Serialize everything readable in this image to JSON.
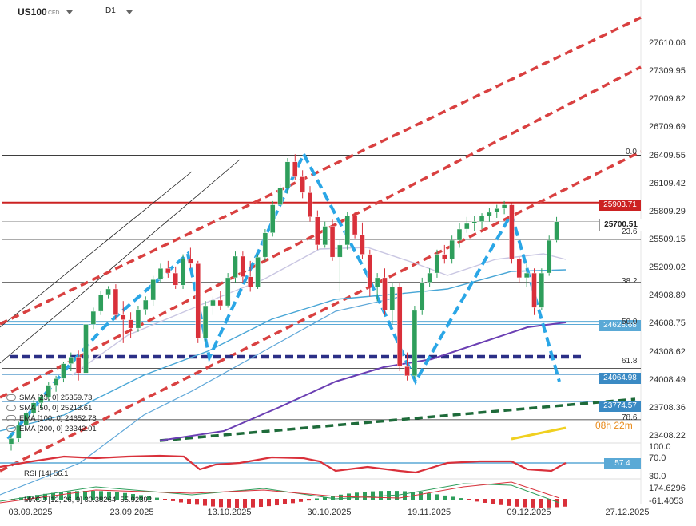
{
  "header": {
    "symbol": "US100",
    "type": "CFD",
    "timeframe": "D1"
  },
  "price_axis": {
    "ticks": [
      "27610.08",
      "27309.95",
      "27009.82",
      "26709.69",
      "26409.55",
      "26109.42",
      "25809.29",
      "25509.15",
      "25209.02",
      "24908.89",
      "24608.75",
      "24308.62",
      "24008.49",
      "23708.36",
      "23408.22"
    ],
    "badges": [
      {
        "label": "25903.71",
        "color": "#cc2222"
      },
      {
        "label": "25700.51",
        "color": "#ffffff",
        "text": "#222",
        "border": "#999"
      },
      {
        "label": "24628.68",
        "color": "#5aa9d6"
      },
      {
        "label": "24064.98",
        "color": "#3a8ac4"
      },
      {
        "label": "23774.57",
        "color": "#3a8ac4"
      }
    ],
    "timer": "08h 22m"
  },
  "fib_labels": [
    "0.0",
    "23.6",
    "38.2",
    "50.0",
    "61.8",
    "78.6"
  ],
  "rsi": {
    "label": "RSI [14]",
    "value": "56.1",
    "ticks": [
      "100.0",
      "70.0",
      "30.0"
    ],
    "badge": "57.4"
  },
  "macd": {
    "label": "MACD [12, 26, 9]",
    "v1": "30.38264",
    "v2": "55.92392",
    "ticks": [
      "174.6296",
      "-61.4053"
    ]
  },
  "legend": [
    {
      "label": "SMA [25, 0]",
      "value": "25359.73"
    },
    {
      "label": "SMA [50, 0]",
      "value": "25213.61"
    },
    {
      "label": "EMA [100, 0]",
      "value": "24652.78"
    },
    {
      "label": "EMA [200, 0]",
      "value": "23342.01"
    }
  ],
  "x_axis": [
    "03.09.2025",
    "23.09.2025",
    "13.10.2025",
    "30.10.2025",
    "19.11.2025",
    "09.12.2025",
    "27.12.2025"
  ],
  "colors": {
    "up": "#2e9e5b",
    "down": "#d9303a",
    "resistance": "#cc2222",
    "channel": "#d94040",
    "pattern": "#2aa6e6"
  },
  "chart_data": {
    "type": "candlestick",
    "candles": [
      [
        23320,
        23420,
        23250,
        23380
      ],
      [
        23380,
        23560,
        23340,
        23520
      ],
      [
        23520,
        23680,
        23480,
        23650
      ],
      [
        23650,
        23790,
        23600,
        23760
      ],
      [
        23760,
        23850,
        23700,
        23820
      ],
      [
        23820,
        23980,
        23780,
        23950
      ],
      [
        23950,
        24050,
        23880,
        24020
      ],
      [
        24020,
        24200,
        23980,
        24180
      ],
      [
        24180,
        24300,
        24100,
        24250
      ],
      [
        24250,
        24320,
        24000,
        24080
      ],
      [
        24080,
        24650,
        24050,
        24600
      ],
      [
        24600,
        24780,
        24550,
        24740
      ],
      [
        24740,
        24960,
        24700,
        24920
      ],
      [
        24920,
        25010,
        24880,
        24980
      ],
      [
        24980,
        25030,
        24650,
        24700
      ],
      [
        24700,
        24850,
        24400,
        24650
      ],
      [
        24650,
        24730,
        24450,
        24560
      ],
      [
        24560,
        24800,
        24520,
        24760
      ],
      [
        24760,
        24900,
        24700,
        24860
      ],
      [
        24860,
        25120,
        24800,
        25080
      ],
      [
        25080,
        25250,
        25040,
        25200
      ],
      [
        25200,
        25280,
        25100,
        25150
      ],
      [
        25150,
        25220,
        24980,
        25020
      ],
      [
        25020,
        25350,
        24980,
        25300
      ],
      [
        25300,
        25420,
        25200,
        25250
      ],
      [
        25250,
        25280,
        24400,
        24450
      ],
      [
        24450,
        24850,
        24420,
        24800
      ],
      [
        24800,
        24900,
        24700,
        24860
      ],
      [
        24860,
        24960,
        24750,
        24800
      ],
      [
        24800,
        25150,
        24780,
        25100
      ],
      [
        25100,
        25380,
        25050,
        25330
      ],
      [
        25330,
        25380,
        25050,
        25110
      ],
      [
        25110,
        25280,
        24950,
        25000
      ],
      [
        25000,
        25350,
        24980,
        25320
      ],
      [
        25320,
        25620,
        25280,
        25580
      ],
      [
        25580,
        25920,
        25540,
        25880
      ],
      [
        25880,
        26100,
        25850,
        26060
      ],
      [
        26060,
        26380,
        26000,
        26340
      ],
      [
        26340,
        26420,
        26150,
        26180
      ],
      [
        26180,
        26250,
        25950,
        26010
      ],
      [
        26010,
        26080,
        25700,
        25750
      ],
      [
        25750,
        25820,
        25400,
        25450
      ],
      [
        25450,
        25700,
        25420,
        25650
      ],
      [
        25650,
        25720,
        25280,
        25320
      ],
      [
        25320,
        25500,
        24950,
        25450
      ],
      [
        25450,
        25800,
        25400,
        25760
      ],
      [
        25760,
        25800,
        25520,
        25560
      ],
      [
        25560,
        25690,
        25300,
        25350
      ],
      [
        25350,
        25400,
        24900,
        25000
      ],
      [
        25000,
        25150,
        24850,
        25100
      ],
      [
        25100,
        25200,
        24700,
        24750
      ],
      [
        24750,
        25050,
        24600,
        25000
      ],
      [
        25000,
        25050,
        24100,
        24150
      ],
      [
        24150,
        24300,
        24000,
        24050
      ],
      [
        24050,
        24800,
        24020,
        24750
      ],
      [
        24750,
        25100,
        24700,
        25050
      ],
      [
        25050,
        25200,
        25000,
        25150
      ],
      [
        25150,
        25400,
        25100,
        25350
      ],
      [
        25350,
        25450,
        25250,
        25300
      ],
      [
        25300,
        25550,
        25250,
        25500
      ],
      [
        25500,
        25680,
        25420,
        25620
      ],
      [
        25620,
        25750,
        25580,
        25680
      ],
      [
        25680,
        25760,
        25600,
        25700
      ],
      [
        25700,
        25790,
        25620,
        25760
      ],
      [
        25760,
        25850,
        25700,
        25800
      ],
      [
        25800,
        25880,
        25740,
        25840
      ],
      [
        25840,
        25920,
        25780,
        25880
      ],
      [
        25880,
        25900,
        25250,
        25300
      ],
      [
        25300,
        25320,
        25050,
        25100
      ],
      [
        25100,
        25250,
        25000,
        25150
      ],
      [
        25150,
        25200,
        24700,
        24780
      ],
      [
        24780,
        25200,
        24750,
        25150
      ],
      [
        25150,
        25550,
        25120,
        25500
      ],
      [
        25500,
        25750,
        25480,
        25700
      ]
    ]
  }
}
